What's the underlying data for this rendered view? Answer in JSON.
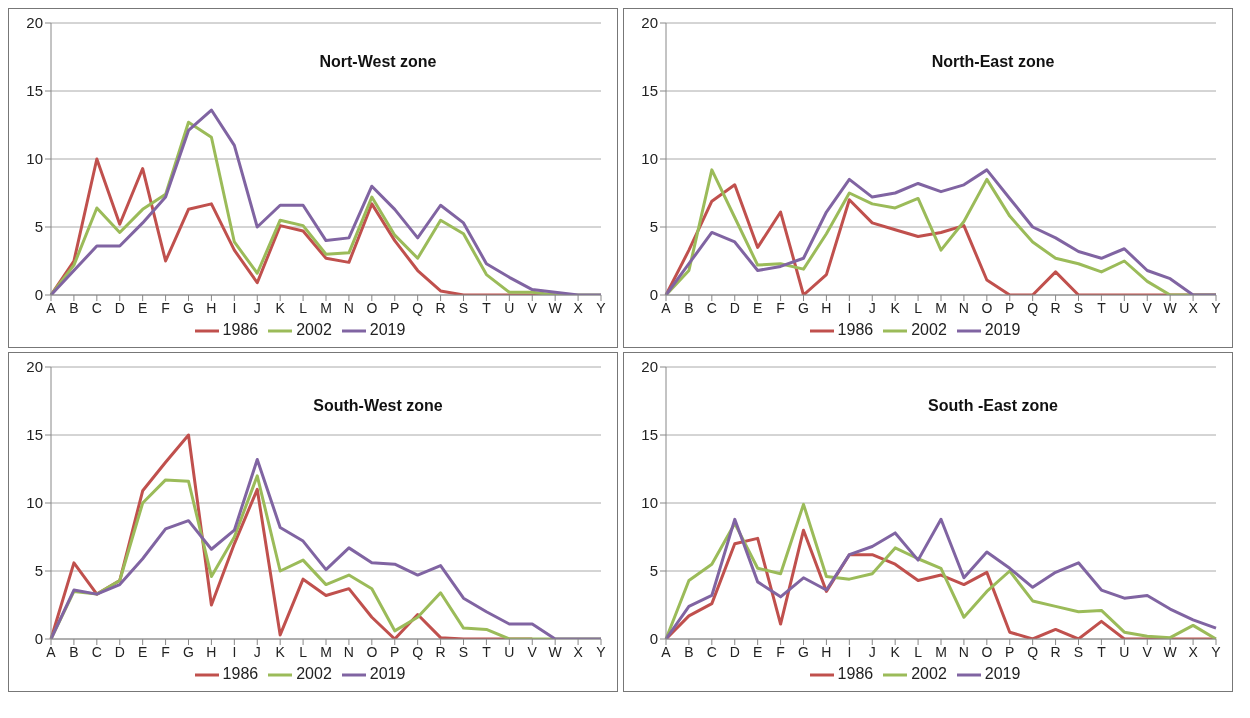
{
  "chart_data": [
    {
      "type": "line",
      "title": "Nort-West zone",
      "categories": [
        "A",
        "B",
        "C",
        "D",
        "E",
        "F",
        "G",
        "H",
        "I",
        "J",
        "K",
        "L",
        "M",
        "N",
        "O",
        "P",
        "Q",
        "R",
        "S",
        "T",
        "U",
        "V",
        "W",
        "X",
        "Y"
      ],
      "ylim": [
        0,
        20
      ],
      "yticks": [
        0,
        5,
        10,
        15,
        20
      ],
      "grid": "y",
      "legend": "bottom",
      "marker": "none",
      "line_style": "solid",
      "series": [
        {
          "name": "1986",
          "color": "#c0504d",
          "values": [
            0,
            2.5,
            10,
            5.2,
            9.3,
            2.5,
            6.3,
            6.7,
            3.3,
            0.9,
            5.1,
            4.7,
            2.7,
            2.4,
            6.7,
            4,
            1.8,
            0.3,
            0,
            0,
            0,
            0,
            0,
            null,
            null
          ]
        },
        {
          "name": "2002",
          "color": "#9bbb59",
          "values": [
            0,
            2.2,
            6.4,
            4.6,
            6.3,
            7.4,
            12.7,
            11.6,
            3.9,
            1.6,
            5.5,
            5.1,
            3,
            3.1,
            7.2,
            4.4,
            2.7,
            5.5,
            4.5,
            1.5,
            0.2,
            0.2,
            0,
            0,
            0
          ]
        },
        {
          "name": "2019",
          "color": "#8064a2",
          "values": [
            0,
            1.8,
            3.6,
            3.6,
            5.3,
            7.2,
            12.1,
            13.6,
            11,
            5,
            6.6,
            6.6,
            4,
            4.2,
            8,
            6.3,
            4.2,
            6.6,
            5.3,
            2.3,
            1.3,
            0.4,
            0.2,
            0,
            0
          ]
        }
      ]
    },
    {
      "type": "line",
      "title": "North-East zone",
      "categories": [
        "A",
        "B",
        "C",
        "D",
        "E",
        "F",
        "G",
        "H",
        "I",
        "J",
        "K",
        "L",
        "M",
        "N",
        "O",
        "P",
        "Q",
        "R",
        "S",
        "T",
        "U",
        "V",
        "W",
        "X",
        "Y"
      ],
      "ylim": [
        0,
        20
      ],
      "yticks": [
        0,
        5,
        10,
        15,
        20
      ],
      "grid": "y",
      "legend": "bottom",
      "marker": "none",
      "line_style": "solid",
      "series": [
        {
          "name": "1986",
          "color": "#c0504d",
          "values": [
            0,
            3.3,
            6.9,
            8.1,
            3.5,
            6.1,
            0,
            1.5,
            7,
            5.3,
            4.8,
            4.3,
            4.6,
            5.1,
            1.1,
            0,
            0,
            1.7,
            0,
            0,
            0,
            0,
            0,
            0,
            0
          ]
        },
        {
          "name": "2002",
          "color": "#9bbb59",
          "values": [
            0,
            1.8,
            9.2,
            5.7,
            2.2,
            2.3,
            1.9,
            4.5,
            7.5,
            6.7,
            6.4,
            7.1,
            3.3,
            5.4,
            8.5,
            5.8,
            3.9,
            2.7,
            2.3,
            1.7,
            2.5,
            1,
            0,
            0,
            0
          ]
        },
        {
          "name": "2019",
          "color": "#8064a2",
          "values": [
            0,
            2.3,
            4.6,
            3.9,
            1.8,
            2.1,
            2.7,
            6.1,
            8.5,
            7.2,
            7.5,
            8.2,
            7.6,
            8.1,
            9.2,
            7.1,
            5,
            4.2,
            3.2,
            2.7,
            3.4,
            1.8,
            1.2,
            0,
            0
          ]
        }
      ]
    },
    {
      "type": "line",
      "title": "South-West zone",
      "categories": [
        "A",
        "B",
        "C",
        "D",
        "E",
        "F",
        "G",
        "H",
        "I",
        "J",
        "K",
        "L",
        "M",
        "N",
        "O",
        "P",
        "Q",
        "R",
        "S",
        "T",
        "U",
        "V",
        "W",
        "X",
        "Y"
      ],
      "ylim": [
        0,
        20
      ],
      "yticks": [
        0,
        5,
        10,
        15,
        20
      ],
      "grid": "y",
      "legend": "bottom",
      "marker": "none",
      "line_style": "solid",
      "series": [
        {
          "name": "1986",
          "color": "#c0504d",
          "values": [
            0,
            5.6,
            3.3,
            4.3,
            10.9,
            13,
            15,
            2.5,
            7,
            11,
            0.3,
            4.4,
            3.2,
            3.7,
            1.6,
            0,
            1.8,
            0.1,
            0,
            0,
            0,
            0,
            null,
            null,
            null
          ]
        },
        {
          "name": "2002",
          "color": "#9bbb59",
          "values": [
            0,
            3.5,
            3.3,
            4.3,
            10,
            11.7,
            11.6,
            4.6,
            7.5,
            12,
            5,
            5.8,
            4,
            4.7,
            3.7,
            0.6,
            1.6,
            3.4,
            0.8,
            0.7,
            0,
            0,
            0,
            0,
            0
          ]
        },
        {
          "name": "2019",
          "color": "#8064a2",
          "values": [
            0,
            3.6,
            3.3,
            4,
            5.9,
            8.1,
            8.7,
            6.6,
            8,
            13.2,
            8.2,
            7.2,
            5.1,
            6.7,
            5.6,
            5.5,
            4.7,
            5.4,
            3,
            2,
            1.1,
            1.1,
            0,
            0,
            0
          ]
        }
      ]
    },
    {
      "type": "line",
      "title": "South -East zone",
      "categories": [
        "A",
        "B",
        "C",
        "D",
        "E",
        "F",
        "G",
        "H",
        "I",
        "J",
        "K",
        "L",
        "M",
        "N",
        "O",
        "P",
        "Q",
        "R",
        "S",
        "T",
        "U",
        "V",
        "W",
        "X",
        "Y"
      ],
      "ylim": [
        0,
        20
      ],
      "yticks": [
        0,
        5,
        10,
        15,
        20
      ],
      "grid": "y",
      "legend": "bottom",
      "marker": "none",
      "line_style": "solid",
      "series": [
        {
          "name": "1986",
          "color": "#c0504d",
          "values": [
            0,
            1.7,
            2.6,
            7,
            7.4,
            1.1,
            8,
            3.5,
            6.2,
            6.2,
            5.5,
            4.3,
            4.7,
            4,
            4.9,
            0.5,
            0,
            0.7,
            0,
            1.3,
            0,
            0,
            0,
            0,
            0
          ]
        },
        {
          "name": "2002",
          "color": "#9bbb59",
          "values": [
            0,
            4.3,
            5.5,
            8.5,
            5.2,
            4.8,
            9.9,
            4.6,
            4.4,
            4.8,
            6.7,
            5.9,
            5.2,
            1.6,
            3.5,
            5,
            2.8,
            2.4,
            2,
            2.1,
            0.5,
            0.2,
            0.1,
            1,
            0
          ]
        },
        {
          "name": "2019",
          "color": "#8064a2",
          "values": [
            0,
            2.4,
            3.2,
            8.8,
            4.2,
            3.1,
            4.5,
            3.6,
            6.2,
            6.8,
            7.8,
            5.8,
            8.8,
            4.5,
            6.4,
            5.2,
            3.8,
            4.9,
            5.6,
            3.6,
            3,
            3.2,
            2.2,
            1.4,
            0.8
          ]
        }
      ]
    }
  ]
}
